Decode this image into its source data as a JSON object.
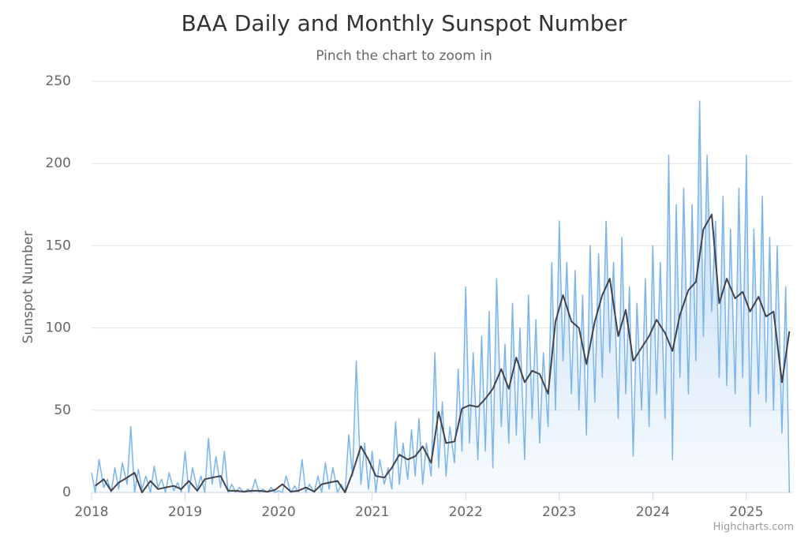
{
  "chart_data": {
    "type": "line",
    "title": "BAA Daily and Monthly Sunspot Number",
    "subtitle": "Pinch the chart to zoom in",
    "y_label": "Sunspot Number",
    "credits": "Highcharts.com",
    "xlim": [
      2018,
      2025.49
    ],
    "xticks": [
      2018,
      2019,
      2020,
      2021,
      2022,
      2023,
      2024,
      2025
    ],
    "ylim": [
      0,
      250
    ],
    "yticks": [
      0,
      50,
      100,
      150,
      200,
      250
    ],
    "grid": true,
    "series": [
      {
        "name": "Daily",
        "color": "#7cb5ec",
        "area": true,
        "x": [
          2018.0,
          2018.04,
          2018.08,
          2018.13,
          2018.17,
          2018.21,
          2018.25,
          2018.29,
          2018.33,
          2018.38,
          2018.42,
          2018.46,
          2018.5,
          2018.54,
          2018.58,
          2018.63,
          2018.67,
          2018.71,
          2018.75,
          2018.79,
          2018.83,
          2018.88,
          2018.92,
          2018.96,
          2019.0,
          2019.04,
          2019.08,
          2019.13,
          2019.17,
          2019.21,
          2019.25,
          2019.29,
          2019.33,
          2019.38,
          2019.42,
          2019.46,
          2019.5,
          2019.54,
          2019.58,
          2019.63,
          2019.67,
          2019.71,
          2019.75,
          2019.79,
          2019.83,
          2019.88,
          2019.92,
          2019.96,
          2020.0,
          2020.04,
          2020.08,
          2020.13,
          2020.17,
          2020.21,
          2020.25,
          2020.29,
          2020.33,
          2020.38,
          2020.42,
          2020.46,
          2020.5,
          2020.54,
          2020.58,
          2020.63,
          2020.67,
          2020.71,
          2020.75,
          2020.79,
          2020.83,
          2020.88,
          2020.92,
          2020.96,
          2021.0,
          2021.04,
          2021.08,
          2021.13,
          2021.17,
          2021.21,
          2021.25,
          2021.29,
          2021.33,
          2021.38,
          2021.42,
          2021.46,
          2021.5,
          2021.54,
          2021.58,
          2021.63,
          2021.67,
          2021.71,
          2021.75,
          2021.79,
          2021.83,
          2021.88,
          2021.92,
          2021.96,
          2022.0,
          2022.04,
          2022.08,
          2022.13,
          2022.17,
          2022.21,
          2022.25,
          2022.29,
          2022.33,
          2022.38,
          2022.42,
          2022.46,
          2022.5,
          2022.54,
          2022.58,
          2022.63,
          2022.67,
          2022.71,
          2022.75,
          2022.79,
          2022.83,
          2022.88,
          2022.92,
          2022.96,
          2023.0,
          2023.04,
          2023.08,
          2023.13,
          2023.17,
          2023.21,
          2023.25,
          2023.29,
          2023.33,
          2023.38,
          2023.42,
          2023.46,
          2023.5,
          2023.54,
          2023.58,
          2023.63,
          2023.67,
          2023.71,
          2023.75,
          2023.79,
          2023.83,
          2023.88,
          2023.92,
          2023.96,
          2024.0,
          2024.04,
          2024.08,
          2024.13,
          2024.17,
          2024.21,
          2024.25,
          2024.29,
          2024.33,
          2024.38,
          2024.42,
          2024.46,
          2024.5,
          2024.54,
          2024.58,
          2024.63,
          2024.67,
          2024.71,
          2024.75,
          2024.79,
          2024.83,
          2024.88,
          2024.92,
          2024.96,
          2025.0,
          2025.04,
          2025.08,
          2025.13,
          2025.17,
          2025.21,
          2025.25,
          2025.29,
          2025.33,
          2025.38,
          2025.42,
          2025.46
        ],
        "values": [
          12,
          0,
          20,
          3,
          8,
          0,
          15,
          2,
          18,
          5,
          40,
          0,
          14,
          2,
          10,
          0,
          16,
          3,
          8,
          0,
          12,
          1,
          6,
          0,
          25,
          0,
          15,
          2,
          10,
          0,
          33,
          5,
          22,
          3,
          25,
          0,
          5,
          0,
          3,
          0,
          2,
          0,
          8,
          0,
          2,
          0,
          3,
          0,
          1,
          0,
          10,
          0,
          4,
          0,
          20,
          0,
          5,
          0,
          10,
          0,
          18,
          2,
          15,
          0,
          5,
          0,
          35,
          10,
          80,
          5,
          30,
          2,
          25,
          0,
          20,
          5,
          15,
          2,
          43,
          5,
          30,
          8,
          38,
          10,
          45,
          5,
          30,
          10,
          85,
          15,
          55,
          10,
          40,
          18,
          75,
          25,
          125,
          30,
          85,
          20,
          95,
          25,
          110,
          15,
          130,
          40,
          90,
          30,
          115,
          35,
          100,
          20,
          120,
          45,
          105,
          30,
          85,
          40,
          140,
          50,
          165,
          80,
          140,
          60,
          135,
          50,
          120,
          35,
          150,
          55,
          145,
          70,
          165,
          85,
          140,
          45,
          155,
          60,
          125,
          22,
          115,
          50,
          130,
          40,
          150,
          60,
          140,
          45,
          205,
          20,
          175,
          70,
          185,
          60,
          175,
          80,
          238,
          95,
          205,
          110,
          165,
          70,
          180,
          65,
          160,
          60,
          185,
          70,
          205,
          40,
          160,
          60,
          180,
          55,
          155,
          50,
          150,
          36,
          125,
          0
        ]
      },
      {
        "name": "Monthly",
        "color": "#434348",
        "x": [
          2018.04,
          2018.13,
          2018.21,
          2018.29,
          2018.38,
          2018.46,
          2018.54,
          2018.63,
          2018.71,
          2018.79,
          2018.88,
          2018.96,
          2019.04,
          2019.13,
          2019.21,
          2019.29,
          2019.38,
          2019.46,
          2019.54,
          2019.63,
          2019.71,
          2019.79,
          2019.88,
          2019.96,
          2020.04,
          2020.13,
          2020.21,
          2020.29,
          2020.38,
          2020.46,
          2020.54,
          2020.63,
          2020.71,
          2020.79,
          2020.88,
          2020.96,
          2021.04,
          2021.13,
          2021.21,
          2021.29,
          2021.38,
          2021.46,
          2021.54,
          2021.63,
          2021.71,
          2021.79,
          2021.88,
          2021.96,
          2022.04,
          2022.13,
          2022.21,
          2022.29,
          2022.38,
          2022.46,
          2022.54,
          2022.63,
          2022.71,
          2022.79,
          2022.88,
          2022.96,
          2023.04,
          2023.13,
          2023.21,
          2023.29,
          2023.38,
          2023.46,
          2023.54,
          2023.63,
          2023.71,
          2023.79,
          2023.88,
          2023.96,
          2024.04,
          2024.13,
          2024.21,
          2024.29,
          2024.38,
          2024.46,
          2024.54,
          2024.63,
          2024.71,
          2024.79,
          2024.88,
          2024.96,
          2025.04,
          2025.13,
          2025.21,
          2025.29,
          2025.38,
          2025.46
        ],
        "values": [
          4,
          8,
          1,
          6,
          9,
          12,
          0,
          7,
          2,
          3,
          4,
          2,
          7,
          1,
          8,
          9,
          10,
          1,
          1,
          0.5,
          1,
          1,
          0.5,
          1.5,
          5,
          0.5,
          1,
          3,
          0.5,
          5,
          6,
          7,
          0,
          12,
          28,
          20,
          10,
          9,
          15,
          23,
          20,
          22,
          28,
          18,
          49,
          30,
          31,
          51,
          53,
          52,
          57,
          63,
          75,
          63,
          82,
          67,
          74,
          72,
          60,
          104,
          120,
          104,
          100,
          78,
          104,
          120,
          130,
          95,
          111,
          80,
          88,
          95,
          105,
          97,
          86,
          108,
          123,
          128,
          160,
          169,
          115,
          130,
          118,
          122,
          110,
          119,
          107,
          110,
          67,
          98
        ]
      }
    ]
  }
}
